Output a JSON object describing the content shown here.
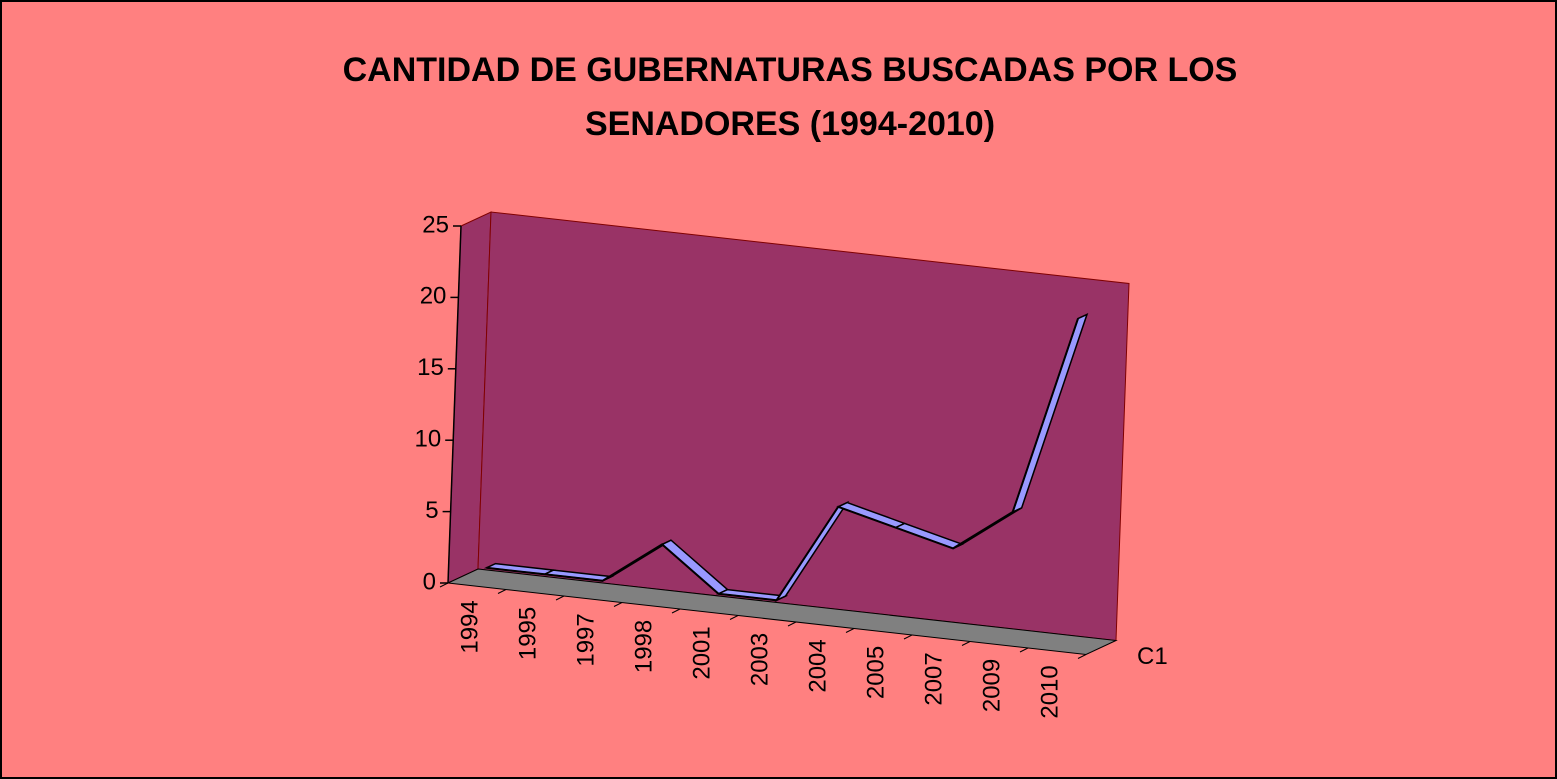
{
  "chart_data": {
    "type": "line3d",
    "title": [
      "CANTIDAD DE GUBERNATURAS BUSCADAS POR LOS",
      "SENADORES (1994-2010)"
    ],
    "categories": [
      "1994",
      "1995",
      "1997",
      "1998",
      "2001",
      "2003",
      "2004",
      "2005",
      "2007",
      "2009",
      "2010"
    ],
    "series": [
      {
        "name": "C1",
        "color": "#9999ff",
        "values": [
          1,
          1,
          1,
          4,
          1,
          1,
          8,
          7,
          6,
          9,
          23
        ]
      }
    ],
    "ylim": [
      0,
      25
    ],
    "yticks": [
      0,
      5,
      10,
      15,
      20,
      25
    ],
    "wall_color": "#993366",
    "floor_color": "#808080",
    "background": "#ff8080"
  }
}
